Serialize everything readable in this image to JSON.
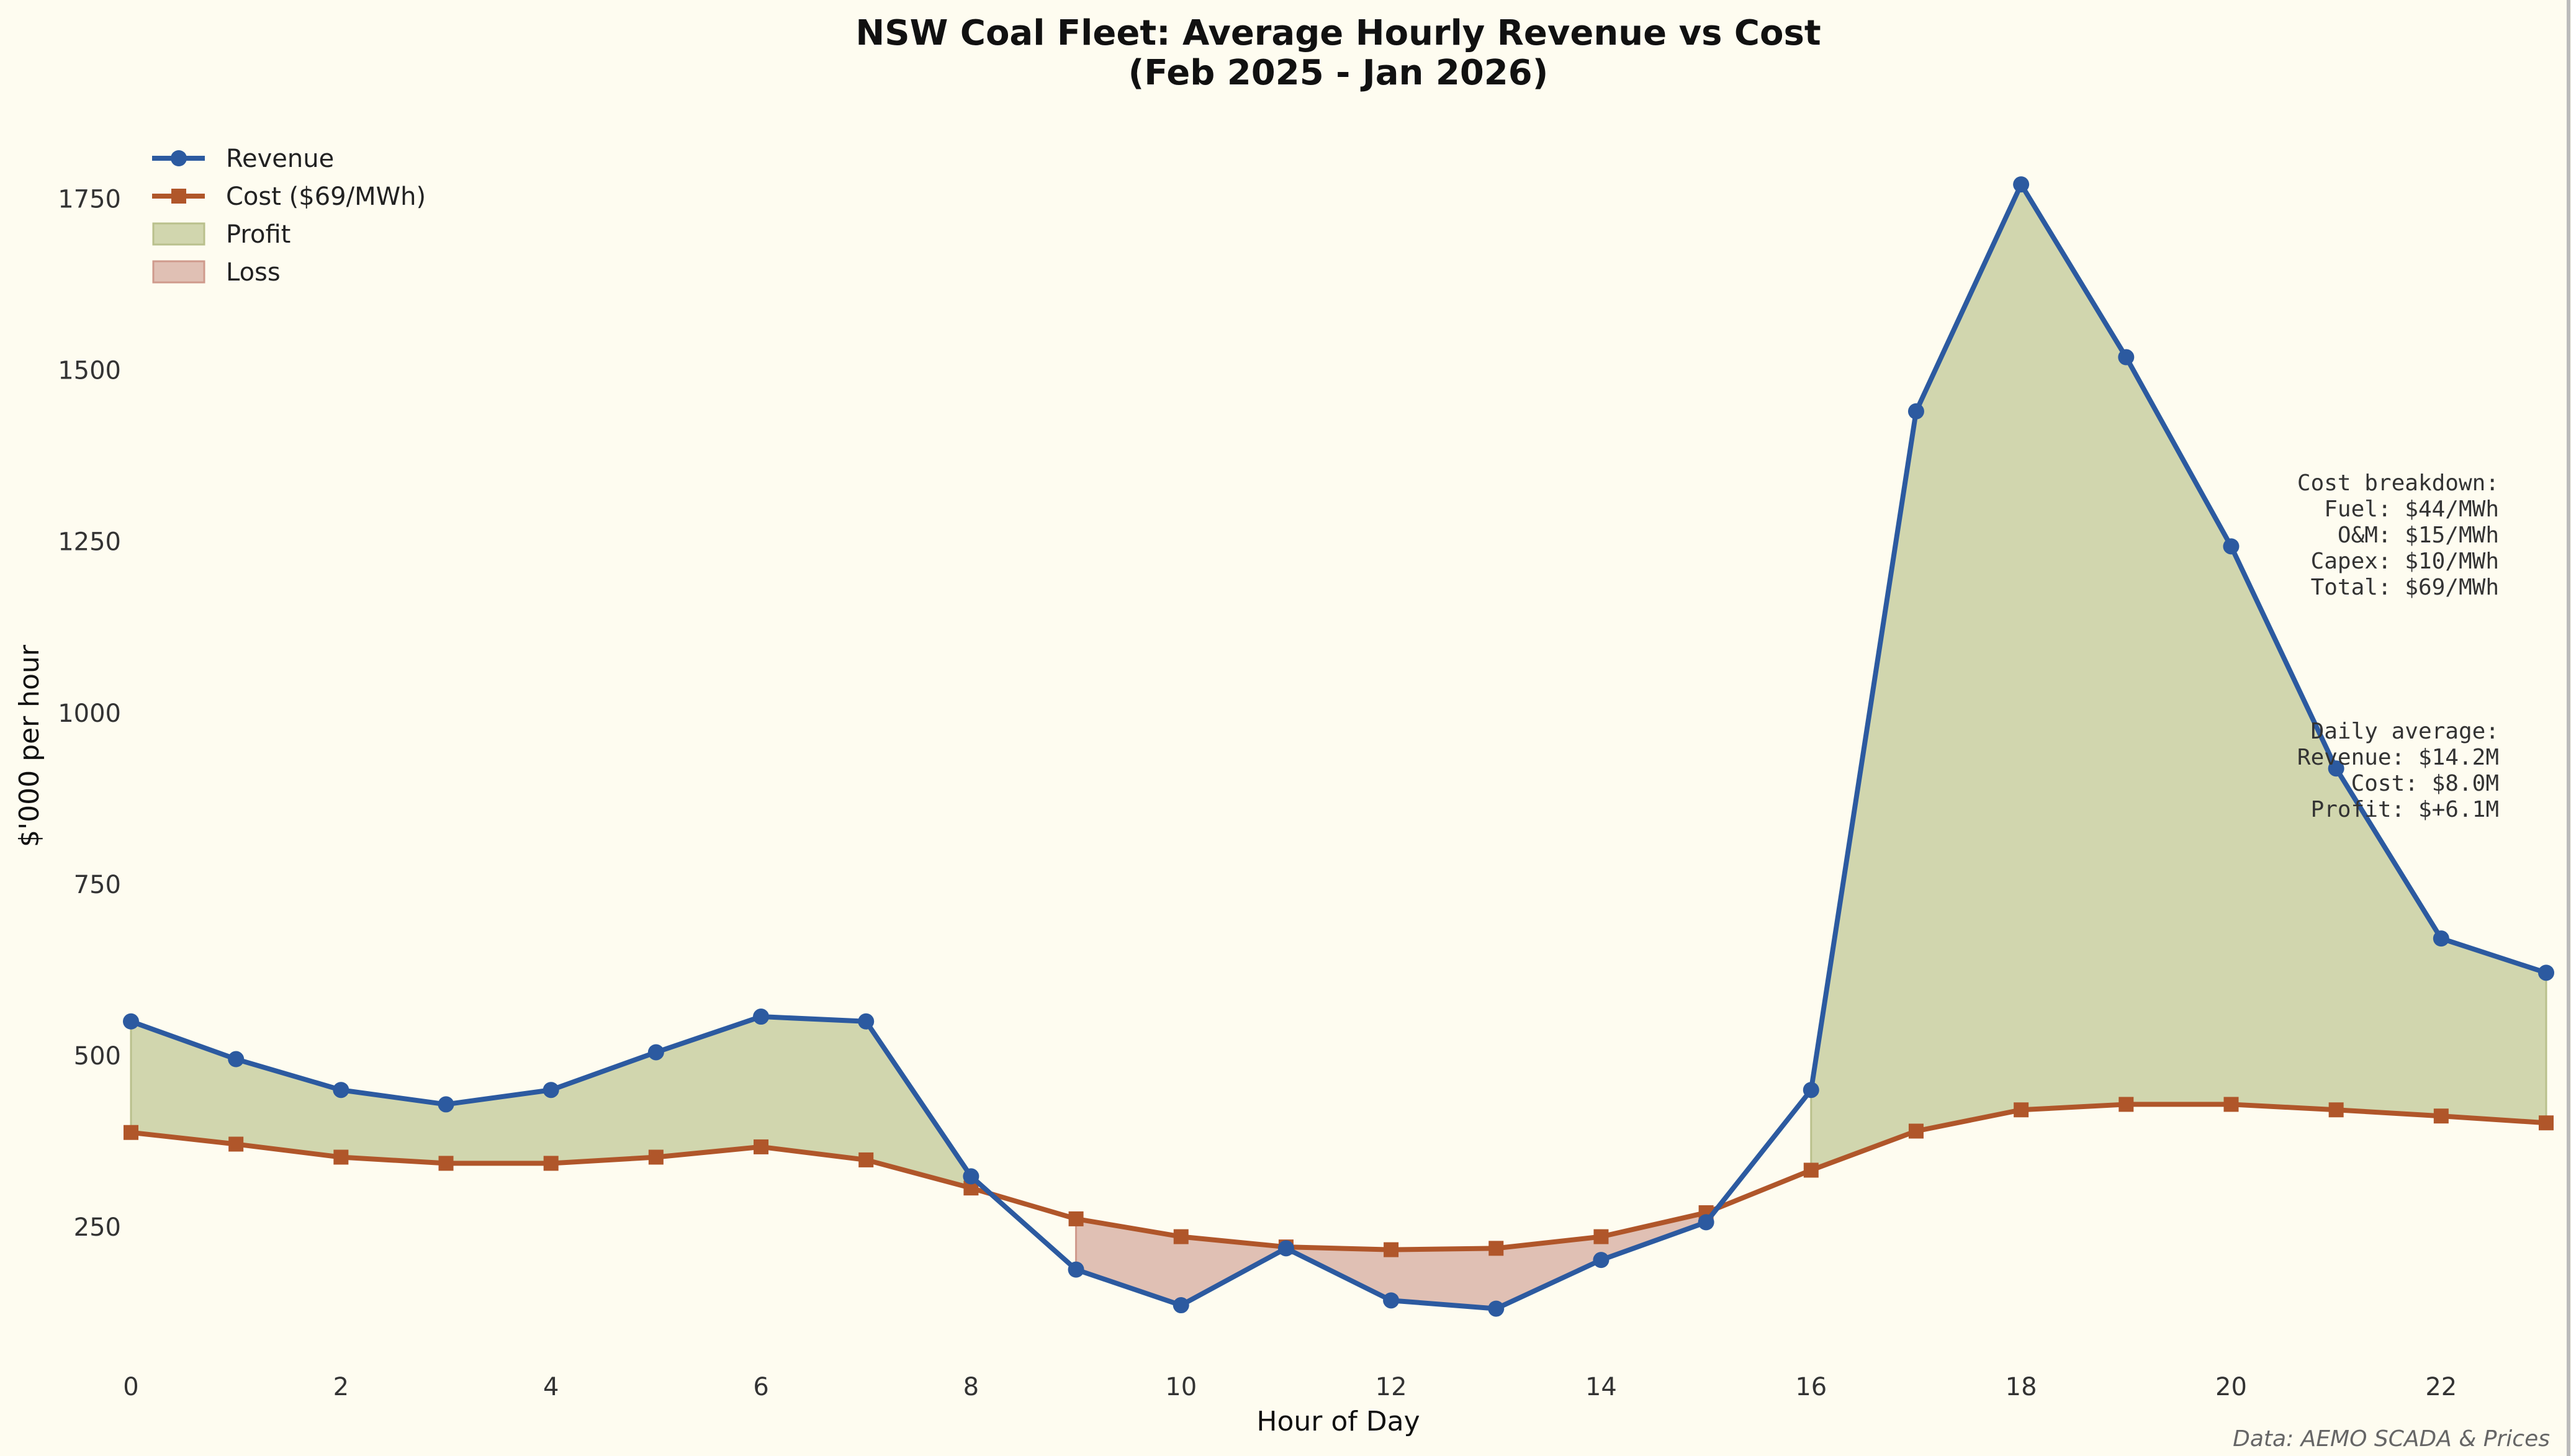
{
  "chart_data": {
    "type": "line",
    "title": "NSW Coal Fleet: Average Hourly Revenue vs Cost",
    "subtitle": "(Feb 2025 - Jan 2026)",
    "xlabel": "Hour of Day",
    "ylabel": "$'000 per hour",
    "x": [
      0,
      1,
      2,
      3,
      4,
      5,
      6,
      7,
      8,
      9,
      10,
      11,
      12,
      13,
      14,
      15,
      16,
      17,
      18,
      19,
      20,
      21,
      22,
      23
    ],
    "xticks": [
      "0",
      "2",
      "4",
      "6",
      "8",
      "10",
      "12",
      "14",
      "16",
      "18",
      "20",
      "22"
    ],
    "yticks": [
      "250",
      "500",
      "750",
      "1000",
      "1250",
      "1500",
      "1750"
    ],
    "xlim": [
      0,
      23
    ],
    "ylim": [
      60,
      1830
    ],
    "grid": false,
    "legend_position": "top-left",
    "series": [
      {
        "name": "Revenue",
        "color": "#2c5aa0",
        "marker": "circle",
        "values": [
          550,
          495,
          450,
          429,
          450,
          505,
          557,
          550,
          324,
          188,
          136,
          219,
          143,
          131,
          202,
          257,
          450,
          1440,
          1771,
          1519,
          1243,
          919,
          671,
          621
        ]
      },
      {
        "name": "Cost ($69/MWh)",
        "color": "#b0562a",
        "marker": "square",
        "values": [
          388,
          371,
          352,
          343,
          343,
          352,
          367,
          348,
          307,
          262,
          236,
          221,
          217,
          219,
          236,
          271,
          333,
          390,
          421,
          429,
          429,
          421,
          412,
          402
        ]
      }
    ],
    "fills": [
      {
        "name": "Profit",
        "color": "#d1d6ae",
        "edge": "#b9c08c"
      },
      {
        "name": "Loss",
        "color": "#e0c0b4",
        "edge": "#cf9a8c"
      }
    ],
    "annotations": {
      "cost_breakdown": [
        "Cost breakdown:",
        "Fuel: $44/MWh",
        "O&M: $15/MWh",
        "Capex: $10/MWh",
        "Total: $69/MWh"
      ],
      "daily_average": [
        "Daily average:",
        "Revenue: $14.2M",
        "Cost: $8.0M",
        "Profit: $+6.1M"
      ]
    },
    "source": "Data: AEMO SCADA & Prices"
  }
}
